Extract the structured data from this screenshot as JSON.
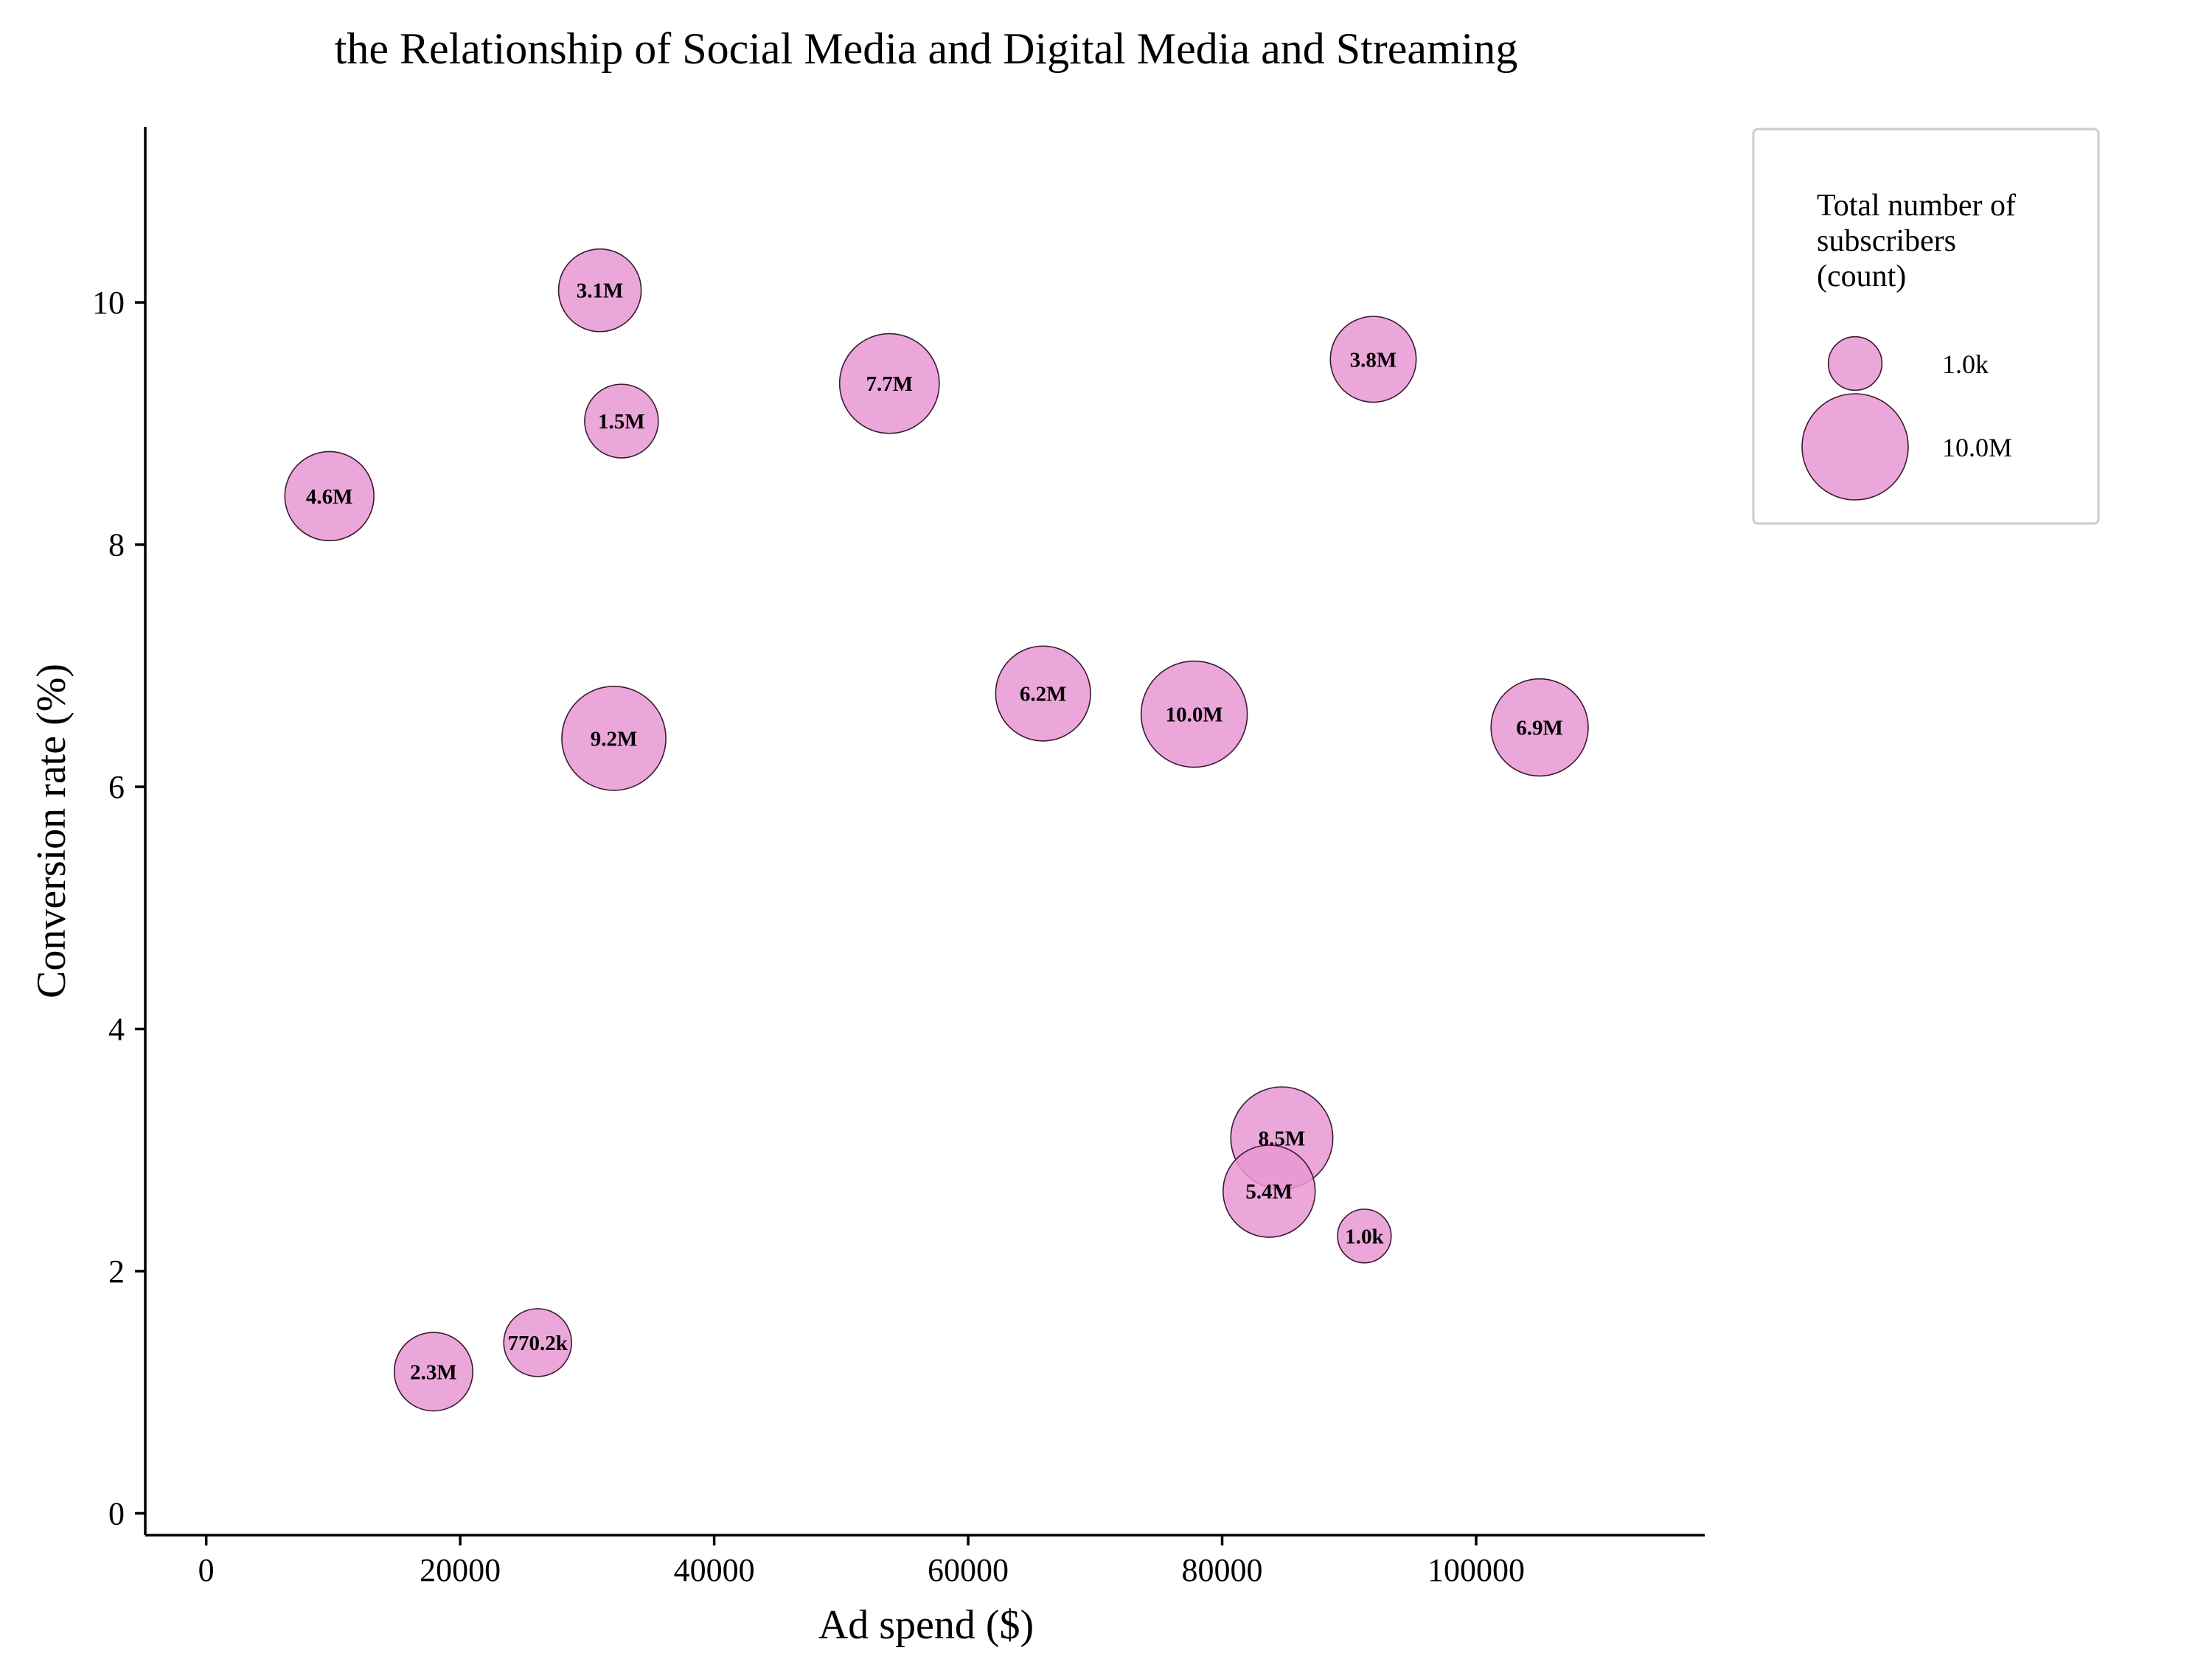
{
  "chart_data": {
    "type": "scatter",
    "title": "the Relationship of Social Media and Digital Media and Streaming",
    "xlabel": "Ad spend ($)",
    "ylabel": "Conversion rate (%)",
    "xlim": [
      -4800,
      118000
    ],
    "ylim": [
      -0.18,
      11.45
    ],
    "xticks": [
      0,
      20000,
      40000,
      60000,
      80000,
      100000
    ],
    "yticks": [
      0,
      2,
      4,
      6,
      8,
      10
    ],
    "bubble_color": "#e998d3",
    "size_encoding": "Total number of subscribers (count)",
    "points": [
      {
        "x": 31000,
        "y": 10.1,
        "size": 3100000,
        "label": "3.1M"
      },
      {
        "x": 53800,
        "y": 9.33,
        "size": 7700000,
        "label": "7.7M"
      },
      {
        "x": 32700,
        "y": 9.02,
        "size": 1500000,
        "label": "1.5M"
      },
      {
        "x": 91900,
        "y": 9.53,
        "size": 3800000,
        "label": "3.8M"
      },
      {
        "x": 9700,
        "y": 8.4,
        "size": 4600000,
        "label": "4.6M"
      },
      {
        "x": 32100,
        "y": 6.4,
        "size": 9200000,
        "label": "9.2M"
      },
      {
        "x": 65900,
        "y": 6.77,
        "size": 6200000,
        "label": "6.2M"
      },
      {
        "x": 77800,
        "y": 6.6,
        "size": 10000000,
        "label": "10.0M"
      },
      {
        "x": 105000,
        "y": 6.49,
        "size": 6900000,
        "label": "6.9M"
      },
      {
        "x": 84700,
        "y": 3.1,
        "size": 8500000,
        "label": "8.5M"
      },
      {
        "x": 83700,
        "y": 2.66,
        "size": 5400000,
        "label": "5.4M"
      },
      {
        "x": 91200,
        "y": 2.29,
        "size": 1000,
        "label": "1.0k"
      },
      {
        "x": 26100,
        "y": 1.41,
        "size": 770200,
        "label": "770.2k"
      },
      {
        "x": 17900,
        "y": 1.17,
        "size": 2300000,
        "label": "2.3M"
      }
    ],
    "legend": {
      "title_lines": [
        "Total number of",
        "subscribers",
        "(count)"
      ],
      "entries": [
        {
          "size": 1000,
          "label": "1.0k"
        },
        {
          "size": 10000000,
          "label": "10.0M"
        }
      ],
      "position": "right"
    }
  }
}
